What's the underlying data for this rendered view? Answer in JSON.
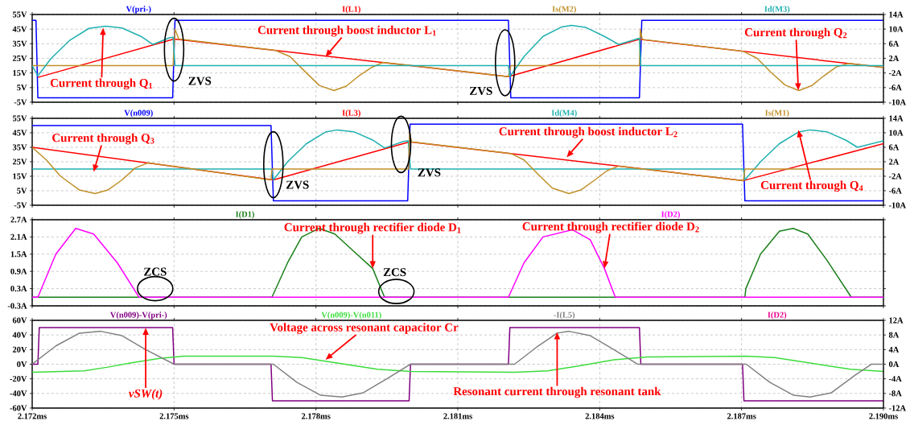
{
  "chart_data": [
    {
      "type": "line",
      "legend": "top",
      "grid": true,
      "tick_labels": "y",
      "xlim": [
        2.172,
        2.19
      ],
      "xticks": [
        {
          "value": 2.172,
          "label": null
        },
        {
          "value": 2.175,
          "label": null
        },
        {
          "value": 2.178,
          "label": null
        },
        {
          "value": 2.181,
          "label": null
        },
        {
          "value": 2.184,
          "label": null
        },
        {
          "value": 2.187,
          "label": null
        },
        {
          "value": 2.19,
          "label": null
        }
      ],
      "ylim": [
        -5,
        55
      ],
      "yticks": [
        {
          "value": -5,
          "label": "-5V"
        },
        {
          "value": 5,
          "label": "5V"
        },
        {
          "value": 15,
          "label": "15V"
        },
        {
          "value": 25,
          "label": "25V"
        },
        {
          "value": 35,
          "label": "35V"
        },
        {
          "value": 45,
          "label": "45V"
        },
        {
          "value": 55,
          "label": "55V"
        }
      ],
      "y2lim": [
        -10,
        14
      ],
      "y2ticks": [
        {
          "value": -10,
          "label": "-10A"
        },
        {
          "value": -6,
          "label": "-6A"
        },
        {
          "value": -2,
          "label": "-2A"
        },
        {
          "value": 2,
          "label": "2A"
        },
        {
          "value": 6,
          "label": "6A"
        },
        {
          "value": 10,
          "label": "10A"
        },
        {
          "value": 14,
          "label": "14A"
        }
      ],
      "series": [
        {
          "name": "V(pri-)",
          "color": "#0000ff",
          "x": [
            2.172,
            2.17208,
            2.17212,
            2.17497,
            2.17502,
            2.18207,
            2.18212,
            2.18484,
            2.18489,
            2.19
          ],
          "values": [
            51,
            51,
            -2,
            -2,
            51,
            51,
            -2,
            -2,
            51,
            51
          ]
        },
        {
          "name": "I(L1)",
          "color": "#ff0000",
          "axis": "y2",
          "x": [
            2.17212,
            2.175,
            2.18207,
            2.18484,
            2.19
          ],
          "values": [
            -3.2,
            7.3,
            -3.0,
            7.2,
            -0.5
          ]
        },
        {
          "name": "Is(M2)",
          "color": "#c09028",
          "axis": "y2",
          "x": [
            2.172,
            2.17498,
            2.17502,
            2.1751,
            2.17714,
            2.17745,
            2.17776,
            2.17807,
            2.17838,
            2.17864,
            2.1789,
            2.17916,
            2.17942,
            2.18207,
            2.18212,
            2.18484,
            2.18486,
            2.1849,
            2.18704,
            2.18733,
            2.18762,
            2.18792,
            2.18821,
            2.18848,
            2.18874,
            2.18901,
            2.18927,
            2.19
          ],
          "values": [
            0,
            0,
            10,
            7.3,
            4.2,
            2.5,
            -1.5,
            -5.4,
            -6.8,
            -5.6,
            -2.9,
            -0.6,
            0.9,
            -3.0,
            0,
            0,
            10,
            7.2,
            3.9,
            2.0,
            -1.8,
            -5.3,
            -6.8,
            -5.5,
            -2.8,
            -0.3,
            0.6,
            -0.5
          ]
        },
        {
          "name": "Id(M3)",
          "color": "#20b0b0",
          "axis": "y2",
          "x": [
            2.172,
            2.17212,
            2.1724,
            2.1728,
            2.1732,
            2.17355,
            2.1739,
            2.1743,
            2.17455,
            2.1749,
            2.17498,
            2.17502,
            2.18207,
            2.1821,
            2.1824,
            2.1828,
            2.1832,
            2.1834,
            2.1837,
            2.1841,
            2.1844,
            2.18478,
            2.18484,
            2.18487,
            2.19
          ],
          "values": [
            0,
            -2.8,
            2,
            7,
            10.2,
            10.8,
            10.3,
            8,
            5.8,
            7.6,
            7.8,
            0,
            0,
            -3,
            2.5,
            8,
            10.6,
            11,
            10.5,
            8,
            5.8,
            7.3,
            7.5,
            0,
            0
          ]
        }
      ],
      "annotations": [
        {
          "text": "Current through boost inductor L$_{1}$",
          "x": 2.1782,
          "y": 26
        },
        {
          "text": "Current through Q$_{1}$",
          "x": 2.1735,
          "y": 46
        },
        {
          "text": "ZVS",
          "x": 2.175,
          "y": 31
        },
        {
          "text": "ZVS",
          "x": 2.182,
          "y": 22
        },
        {
          "text": "Current through Q$_{2}$",
          "x": 2.1882,
          "y": 3
        }
      ]
    },
    {
      "type": "line",
      "legend": "top",
      "grid": true,
      "tick_labels": "y",
      "xlim": [
        2.172,
        2.19
      ],
      "xticks": [
        {
          "value": 2.172,
          "label": null
        },
        {
          "value": 2.175,
          "label": null
        },
        {
          "value": 2.178,
          "label": null
        },
        {
          "value": 2.181,
          "label": null
        },
        {
          "value": 2.184,
          "label": null
        },
        {
          "value": 2.187,
          "label": null
        },
        {
          "value": 2.19,
          "label": null
        }
      ],
      "ylim": [
        -5,
        55
      ],
      "yticks": [
        {
          "value": -5,
          "label": "-5V"
        },
        {
          "value": 5,
          "label": "5V"
        },
        {
          "value": 15,
          "label": "15V"
        },
        {
          "value": 25,
          "label": "25V"
        },
        {
          "value": 35,
          "label": "35V"
        },
        {
          "value": 45,
          "label": "45V"
        },
        {
          "value": 55,
          "label": "55V"
        }
      ],
      "y2lim": [
        -10,
        14
      ],
      "y2ticks": [
        {
          "value": -10,
          "label": "-10A"
        },
        {
          "value": -6,
          "label": "-6A"
        },
        {
          "value": -2,
          "label": "-2A"
        },
        {
          "value": 2,
          "label": "2A"
        },
        {
          "value": 6,
          "label": "6A"
        },
        {
          "value": 10,
          "label": "10A"
        },
        {
          "value": 14,
          "label": "14A"
        }
      ],
      "series": [
        {
          "name": "V(n009)",
          "color": "#0000ff",
          "x": [
            2.172,
            2.17705,
            2.1771,
            2.17994,
            2.17999,
            2.18702,
            2.18707,
            2.19
          ],
          "values": [
            50,
            50,
            -2,
            -2,
            51,
            51,
            -2,
            -2
          ]
        },
        {
          "name": "I(L3)",
          "color": "#ff0000",
          "axis": "y2",
          "x": [
            2.172,
            2.1771,
            2.17998,
            2.18704,
            2.19
          ],
          "values": [
            6,
            -3,
            7.5,
            -3.2,
            7
          ]
        },
        {
          "name": "Id(M4)",
          "color": "#20b0b0",
          "axis": "y2",
          "x": [
            2.172,
            2.17707,
            2.1771,
            2.1774,
            2.1778,
            2.1782,
            2.17845,
            2.1788,
            2.1792,
            2.17945,
            2.17985,
            2.17995,
            2.18,
            2.18704,
            2.18707,
            2.1874,
            2.1878,
            2.1882,
            2.18845,
            2.1888,
            2.1892,
            2.18945,
            2.19
          ],
          "values": [
            0,
            0,
            -3,
            2,
            7,
            10.2,
            10.8,
            10.3,
            8,
            5.8,
            7.6,
            7.8,
            0,
            0,
            -3,
            2,
            7,
            10.2,
            10.8,
            10.3,
            8,
            6,
            7.8
          ]
        },
        {
          "name": "Is(M1)",
          "color": "#c09028",
          "axis": "y2",
          "x": [
            2.172,
            2.1723,
            2.1726,
            2.173,
            2.17333,
            2.1736,
            2.1739,
            2.17418,
            2.17445,
            2.17705,
            2.17707,
            2.17996,
            2.17998,
            2.18002,
            2.18212,
            2.1824,
            2.1827,
            2.183,
            2.18335,
            2.1836,
            2.1839,
            2.18415,
            2.1844,
            2.18704,
            2.18707,
            2.19
          ],
          "values": [
            6,
            2.5,
            -2,
            -5.8,
            -6.8,
            -5.8,
            -3,
            0.3,
            1.7,
            -3,
            0,
            0,
            10,
            7.5,
            4.3,
            2.5,
            -1.5,
            -5.3,
            -6.8,
            -5.8,
            -3,
            -0.5,
            0.8,
            -3.2,
            0,
            0
          ]
        }
      ],
      "annotations": [
        {
          "text": "Current through Q$_{3}$",
          "x": 2.1733,
          "y": 18
        },
        {
          "text": "ZVS",
          "x": 2.1771,
          "y": 23
        },
        {
          "text": "ZVS",
          "x": 2.1798,
          "y": 37
        },
        {
          "text": "Current through boost inductor L$_{2}$",
          "x": 2.1833,
          "y": 28
        },
        {
          "text": "Current through Q$_{4}$",
          "x": 2.1882,
          "y": 47
        }
      ]
    },
    {
      "type": "line",
      "legend": "top",
      "grid": true,
      "tick_labels": "y",
      "xlim": [
        2.172,
        2.19
      ],
      "xticks": [
        {
          "value": 2.172,
          "label": null
        },
        {
          "value": 2.175,
          "label": null
        },
        {
          "value": 2.178,
          "label": null
        },
        {
          "value": 2.181,
          "label": null
        },
        {
          "value": 2.184,
          "label": null
        },
        {
          "value": 2.187,
          "label": null
        },
        {
          "value": 2.19,
          "label": null
        }
      ],
      "ylim": [
        -0.3,
        2.7
      ],
      "yticks": [
        {
          "value": -0.3,
          "label": "-0.3A"
        },
        {
          "value": 0.3,
          "label": "0.3A"
        },
        {
          "value": 0.9,
          "label": "0.9A"
        },
        {
          "value": 1.5,
          "label": "1.5A"
        },
        {
          "value": 2.1,
          "label": "2.1A"
        },
        {
          "value": 2.7,
          "label": "2.7A"
        }
      ],
      "series": [
        {
          "name": "I(D1)",
          "color": "#1a7f1a",
          "x": [
            2.172,
            2.17707,
            2.1774,
            2.1777,
            2.17807,
            2.1784,
            2.1788,
            2.1792,
            2.17945,
            2.18707,
            2.18709,
            2.1874,
            2.1878,
            2.18809,
            2.1884,
            2.1888,
            2.18932,
            2.19
          ],
          "values": [
            0,
            0,
            1.2,
            2.1,
            2.4,
            2.2,
            1.6,
            1.0,
            0,
            0,
            0.3,
            1.5,
            2.3,
            2.4,
            2.2,
            1.3,
            0,
            0
          ]
        },
        {
          "name": "I(D2)",
          "color": "#ff00ff",
          "x": [
            2.172,
            2.17212,
            2.1725,
            2.17292,
            2.1733,
            2.1738,
            2.17426,
            2.18207,
            2.1824,
            2.1828,
            2.18342,
            2.1838,
            2.1841,
            2.18433,
            2.19
          ],
          "values": [
            0,
            0,
            1.5,
            2.4,
            2.2,
            1.2,
            0,
            0,
            1.2,
            2.1,
            2.35,
            2.0,
            1.0,
            0,
            0
          ]
        }
      ],
      "annotations": [
        {
          "text": "ZCS",
          "x": 2.1746,
          "y": 0.3
        },
        {
          "text": "Current through rectifier diode D$_{1}$",
          "x": 2.1792,
          "y": 1.0
        },
        {
          "text": "ZCS",
          "x": 2.1797,
          "y": 0.2
        },
        {
          "text": "Current through rectifier diode D$_{2}$",
          "x": 2.1841,
          "y": 1.0
        }
      ]
    },
    {
      "type": "line",
      "legend": "top",
      "grid": true,
      "xlim": [
        2.172,
        2.19
      ],
      "xticks": [
        {
          "value": 2.172,
          "label": "2.172ms"
        },
        {
          "value": 2.175,
          "label": "2.175ms"
        },
        {
          "value": 2.178,
          "label": "2.178ms"
        },
        {
          "value": 2.181,
          "label": "2.181ms"
        },
        {
          "value": 2.184,
          "label": "2.184ms"
        },
        {
          "value": 2.187,
          "label": "2.187ms"
        },
        {
          "value": 2.19,
          "label": "2.190ms"
        }
      ],
      "ylim": [
        -60,
        60
      ],
      "yticks": [
        {
          "value": -60,
          "label": "-60V"
        },
        {
          "value": -40,
          "label": "-40V"
        },
        {
          "value": -20,
          "label": "-20V"
        },
        {
          "value": 0,
          "label": "0V"
        },
        {
          "value": 20,
          "label": "20V"
        },
        {
          "value": 40,
          "label": "40V"
        },
        {
          "value": 60,
          "label": "60V"
        }
      ],
      "y2lim": [
        -12,
        12
      ],
      "y2ticks": [
        {
          "value": -12,
          "label": "-12A"
        },
        {
          "value": -8,
          "label": "-8A"
        },
        {
          "value": -4,
          "label": "-4A"
        },
        {
          "value": 0,
          "label": "0A"
        },
        {
          "value": 4,
          "label": "4A"
        },
        {
          "value": 8,
          "label": "8A"
        },
        {
          "value": 12,
          "label": "12A"
        }
      ],
      "series": [
        {
          "name": "V(n009)-V(pri-)",
          "color": "#800080",
          "x": [
            2.172,
            2.17212,
            2.17215,
            2.17497,
            2.175,
            2.17705,
            2.17708,
            2.17997,
            2.18,
            2.18207,
            2.1821,
            2.18484,
            2.18487,
            2.18702,
            2.18705,
            2.19
          ],
          "values": [
            0,
            0,
            50,
            50,
            0,
            0,
            -50,
            -50,
            0,
            0,
            50,
            50,
            0,
            0,
            -50,
            -50
          ]
        },
        {
          "name": "V(n009)-V(n011)",
          "color": "#3cdc3c",
          "x": [
            2.172,
            2.1731,
            2.1736,
            2.1741,
            2.1747,
            2.1752,
            2.1771,
            2.1777,
            2.1785,
            2.1793,
            2.18,
            2.1822,
            2.1829,
            2.1836,
            2.1843,
            2.185,
            2.1871,
            2.1877,
            2.1885,
            2.1893,
            2.19
          ],
          "values": [
            -11,
            -9,
            -4,
            2,
            8,
            11,
            11,
            9,
            1,
            -7,
            -10,
            -11,
            -9,
            -2,
            6,
            10,
            11,
            9,
            1,
            -7,
            -10
          ]
        },
        {
          "name": "-I(L5)",
          "color": "#808080",
          "axis": "y2",
          "x": [
            2.172,
            2.1725,
            2.173,
            2.17345,
            2.1739,
            2.1744,
            2.175,
            2.1771,
            2.1776,
            2.1781,
            2.17855,
            2.179,
            2.1795,
            2.18,
            2.1822,
            2.1827,
            2.1831,
            2.18335,
            2.1838,
            2.1843,
            2.1848,
            2.1871,
            2.1876,
            2.1881,
            2.18845,
            2.1889,
            2.1894,
            2.18975,
            2.19
          ],
          "values": [
            0,
            5,
            8.5,
            9,
            7.8,
            4,
            0,
            0,
            -5,
            -8.5,
            -9,
            -7.8,
            -4,
            0,
            0,
            5,
            8.5,
            9,
            7.8,
            4,
            0,
            0,
            -5,
            -8.5,
            -9,
            -7.8,
            -3,
            0,
            0
          ]
        }
      ],
      "annotations": [
        {
          "text": "vSW(t)",
          "x": 2.1744,
          "y": 50
        },
        {
          "text": "Voltage across resonant capacitor Cr",
          "x": 2.1782,
          "y": 6
        },
        {
          "text": "Resonant current through resonant tank",
          "x": 2.1831,
          "y": 44
        },
        "I(D2)"
      ]
    }
  ]
}
